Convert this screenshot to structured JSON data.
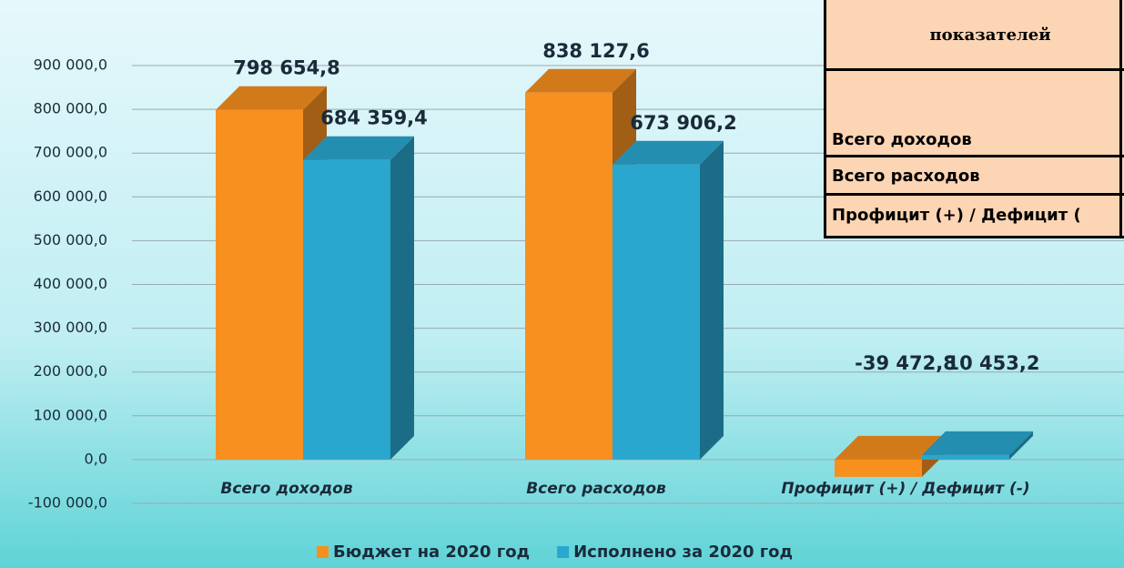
{
  "chart_data": {
    "type": "bar",
    "categories": [
      "Всего доходов",
      "Всего расходов",
      "Профицит (+) / Дефицит (-)"
    ],
    "series": [
      {
        "name": "Бюджет на 2020 год",
        "color": "#f7901e",
        "values": [
          798654.8,
          838127.6,
          -39472.8
        ],
        "value_labels": [
          "798 654,8",
          "838 127,6",
          "-39 472,8"
        ]
      },
      {
        "name": "Исполнено за 2020 год",
        "color": "#2aa7cf",
        "values": [
          684359.4,
          673906.2,
          10453.2
        ],
        "value_labels": [
          "684 359,4",
          "673 906,2",
          "10 453,2"
        ]
      }
    ],
    "ylim": [
      -100000,
      900000
    ],
    "yticks": [
      {
        "value": -100000,
        "label": "-100 000,0"
      },
      {
        "value": 0,
        "label": "0,0"
      },
      {
        "value": 100000,
        "label": "100 000,0"
      },
      {
        "value": 200000,
        "label": "200 000,0"
      },
      {
        "value": 300000,
        "label": "300 000,0"
      },
      {
        "value": 400000,
        "label": "400 000,0"
      },
      {
        "value": 500000,
        "label": "500 000,0"
      },
      {
        "value": 600000,
        "label": "600 000,0"
      },
      {
        "value": 700000,
        "label": "700 000,0"
      },
      {
        "value": 800000,
        "label": "800 000,0"
      },
      {
        "value": 900000,
        "label": "900 000,0"
      }
    ],
    "grid": true,
    "legend": "bottom"
  },
  "table": {
    "header": "показателей",
    "rows": [
      "Всего доходов",
      "Всего расходов",
      "Профицит (+) / Дефицит ("
    ]
  }
}
